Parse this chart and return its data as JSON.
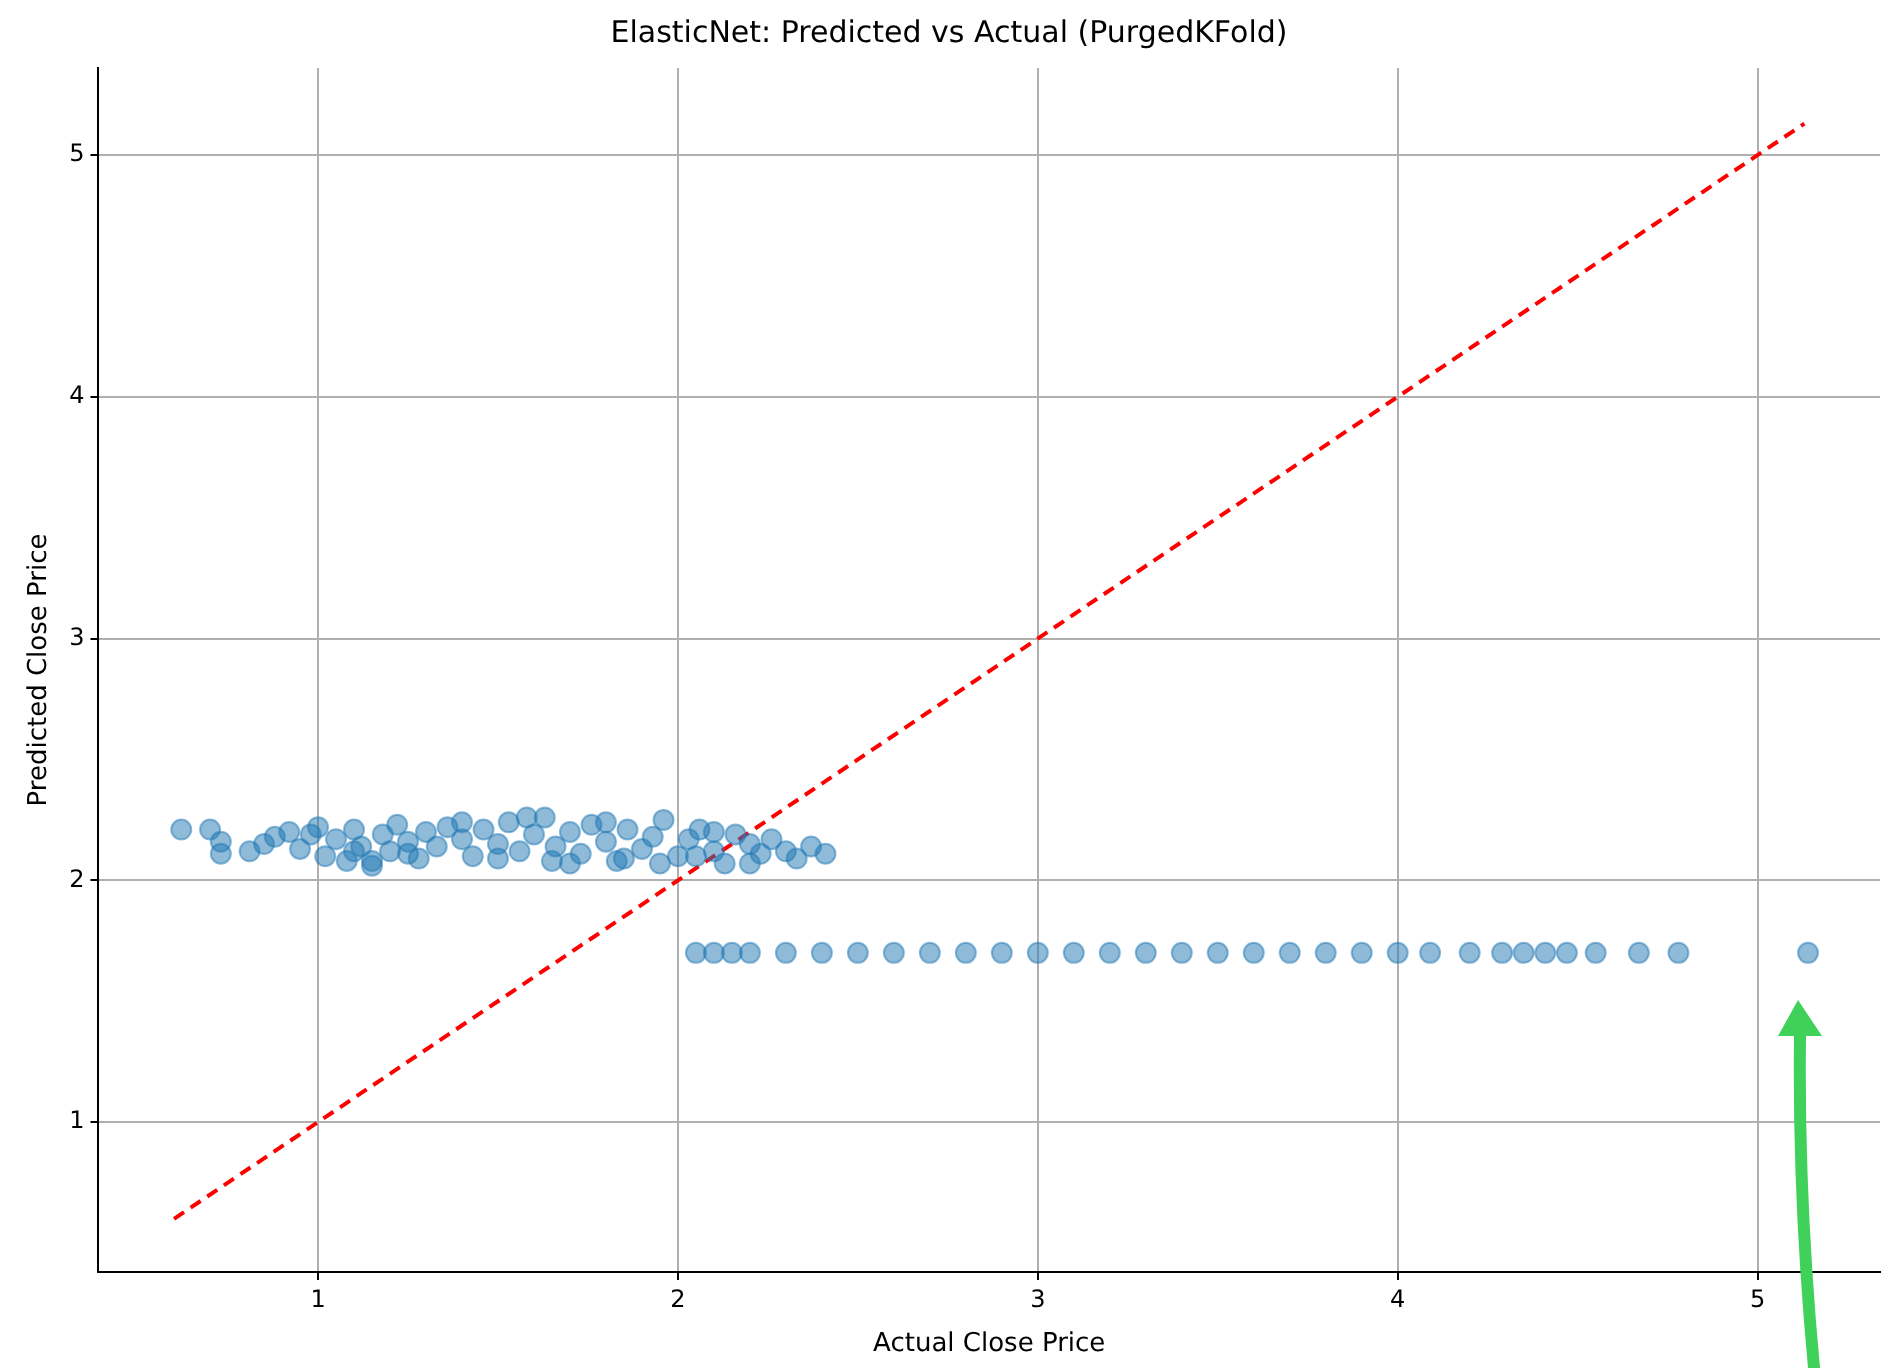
{
  "chart_data": {
    "type": "scatter",
    "title": "ElasticNet: Predicted vs Actual (PurgedKFold)",
    "xlabel": "Actual Close Price",
    "ylabel": "Predicted Close Price",
    "xlim": [
      0.39,
      5.34
    ],
    "ylim": [
      0.38,
      5.36
    ],
    "xticks": [
      1,
      2,
      3,
      4,
      5
    ],
    "yticks": [
      1,
      2,
      3,
      4,
      5
    ],
    "grid": true,
    "legend": false,
    "marker": "circle",
    "series": [
      {
        "color": "#1f77b4",
        "x": [
          0.62,
          0.7,
          0.73,
          0.73,
          0.81,
          0.85,
          0.88,
          0.92,
          0.95,
          0.98,
          1.0,
          1.02,
          1.05,
          1.08,
          1.1,
          1.12,
          1.15,
          1.18,
          1.2,
          1.22,
          1.25,
          1.28,
          1.3,
          1.33,
          1.36,
          1.4,
          1.43,
          1.46,
          1.5,
          1.53,
          1.56,
          1.6,
          1.63,
          1.66,
          1.7,
          1.73,
          1.76,
          1.8,
          1.83,
          1.86,
          1.9,
          1.93,
          1.96,
          2.0,
          2.03,
          2.06,
          2.1,
          2.13,
          2.16,
          2.2,
          2.23,
          2.26,
          2.3,
          2.33,
          2.37,
          2.41,
          1.15,
          1.25,
          1.5,
          1.58,
          1.7,
          1.85,
          1.95,
          2.05,
          2.2,
          1.1,
          1.4,
          1.65,
          1.8,
          2.1
        ],
        "values": [
          2.21,
          2.21,
          2.16,
          2.11,
          2.12,
          2.15,
          2.18,
          2.2,
          2.13,
          2.19,
          2.22,
          2.1,
          2.17,
          2.08,
          2.21,
          2.14,
          2.06,
          2.19,
          2.12,
          2.23,
          2.16,
          2.09,
          2.2,
          2.14,
          2.22,
          2.17,
          2.1,
          2.21,
          2.15,
          2.24,
          2.12,
          2.19,
          2.26,
          2.14,
          2.2,
          2.11,
          2.23,
          2.16,
          2.08,
          2.21,
          2.13,
          2.18,
          2.25,
          2.1,
          2.17,
          2.21,
          2.12,
          2.07,
          2.19,
          2.15,
          2.11,
          2.17,
          2.12,
          2.09,
          2.14,
          2.11,
          2.08,
          2.11,
          2.09,
          2.26,
          2.07,
          2.09,
          2.07,
          2.1,
          2.07,
          2.12,
          2.24,
          2.08,
          2.24,
          2.2
        ]
      },
      {
        "color": "#1f77b4",
        "x": [
          2.05,
          2.1,
          2.15,
          2.2,
          2.3,
          2.4,
          2.5,
          2.6,
          2.7,
          2.8,
          2.9,
          3.0,
          3.1,
          3.2,
          3.3,
          3.4,
          3.5,
          3.6,
          3.7,
          3.8,
          3.9,
          4.0,
          4.09,
          4.2,
          4.29,
          4.35,
          4.41,
          4.47,
          4.55,
          4.67,
          4.78,
          5.14
        ],
        "values": [
          1.7,
          1.7,
          1.7,
          1.7,
          1.7,
          1.7,
          1.7,
          1.7,
          1.7,
          1.7,
          1.7,
          1.7,
          1.7,
          1.7,
          1.7,
          1.7,
          1.7,
          1.7,
          1.7,
          1.7,
          1.7,
          1.7,
          1.7,
          1.7,
          1.7,
          1.7,
          1.7,
          1.7,
          1.7,
          1.7,
          1.7,
          1.7
        ]
      },
      {
        "type": "line",
        "color": "#ff0000",
        "line_style": "dashed",
        "marker": "none",
        "x": [
          0.6,
          5.13
        ],
        "values": [
          0.6,
          5.13
        ]
      }
    ]
  }
}
